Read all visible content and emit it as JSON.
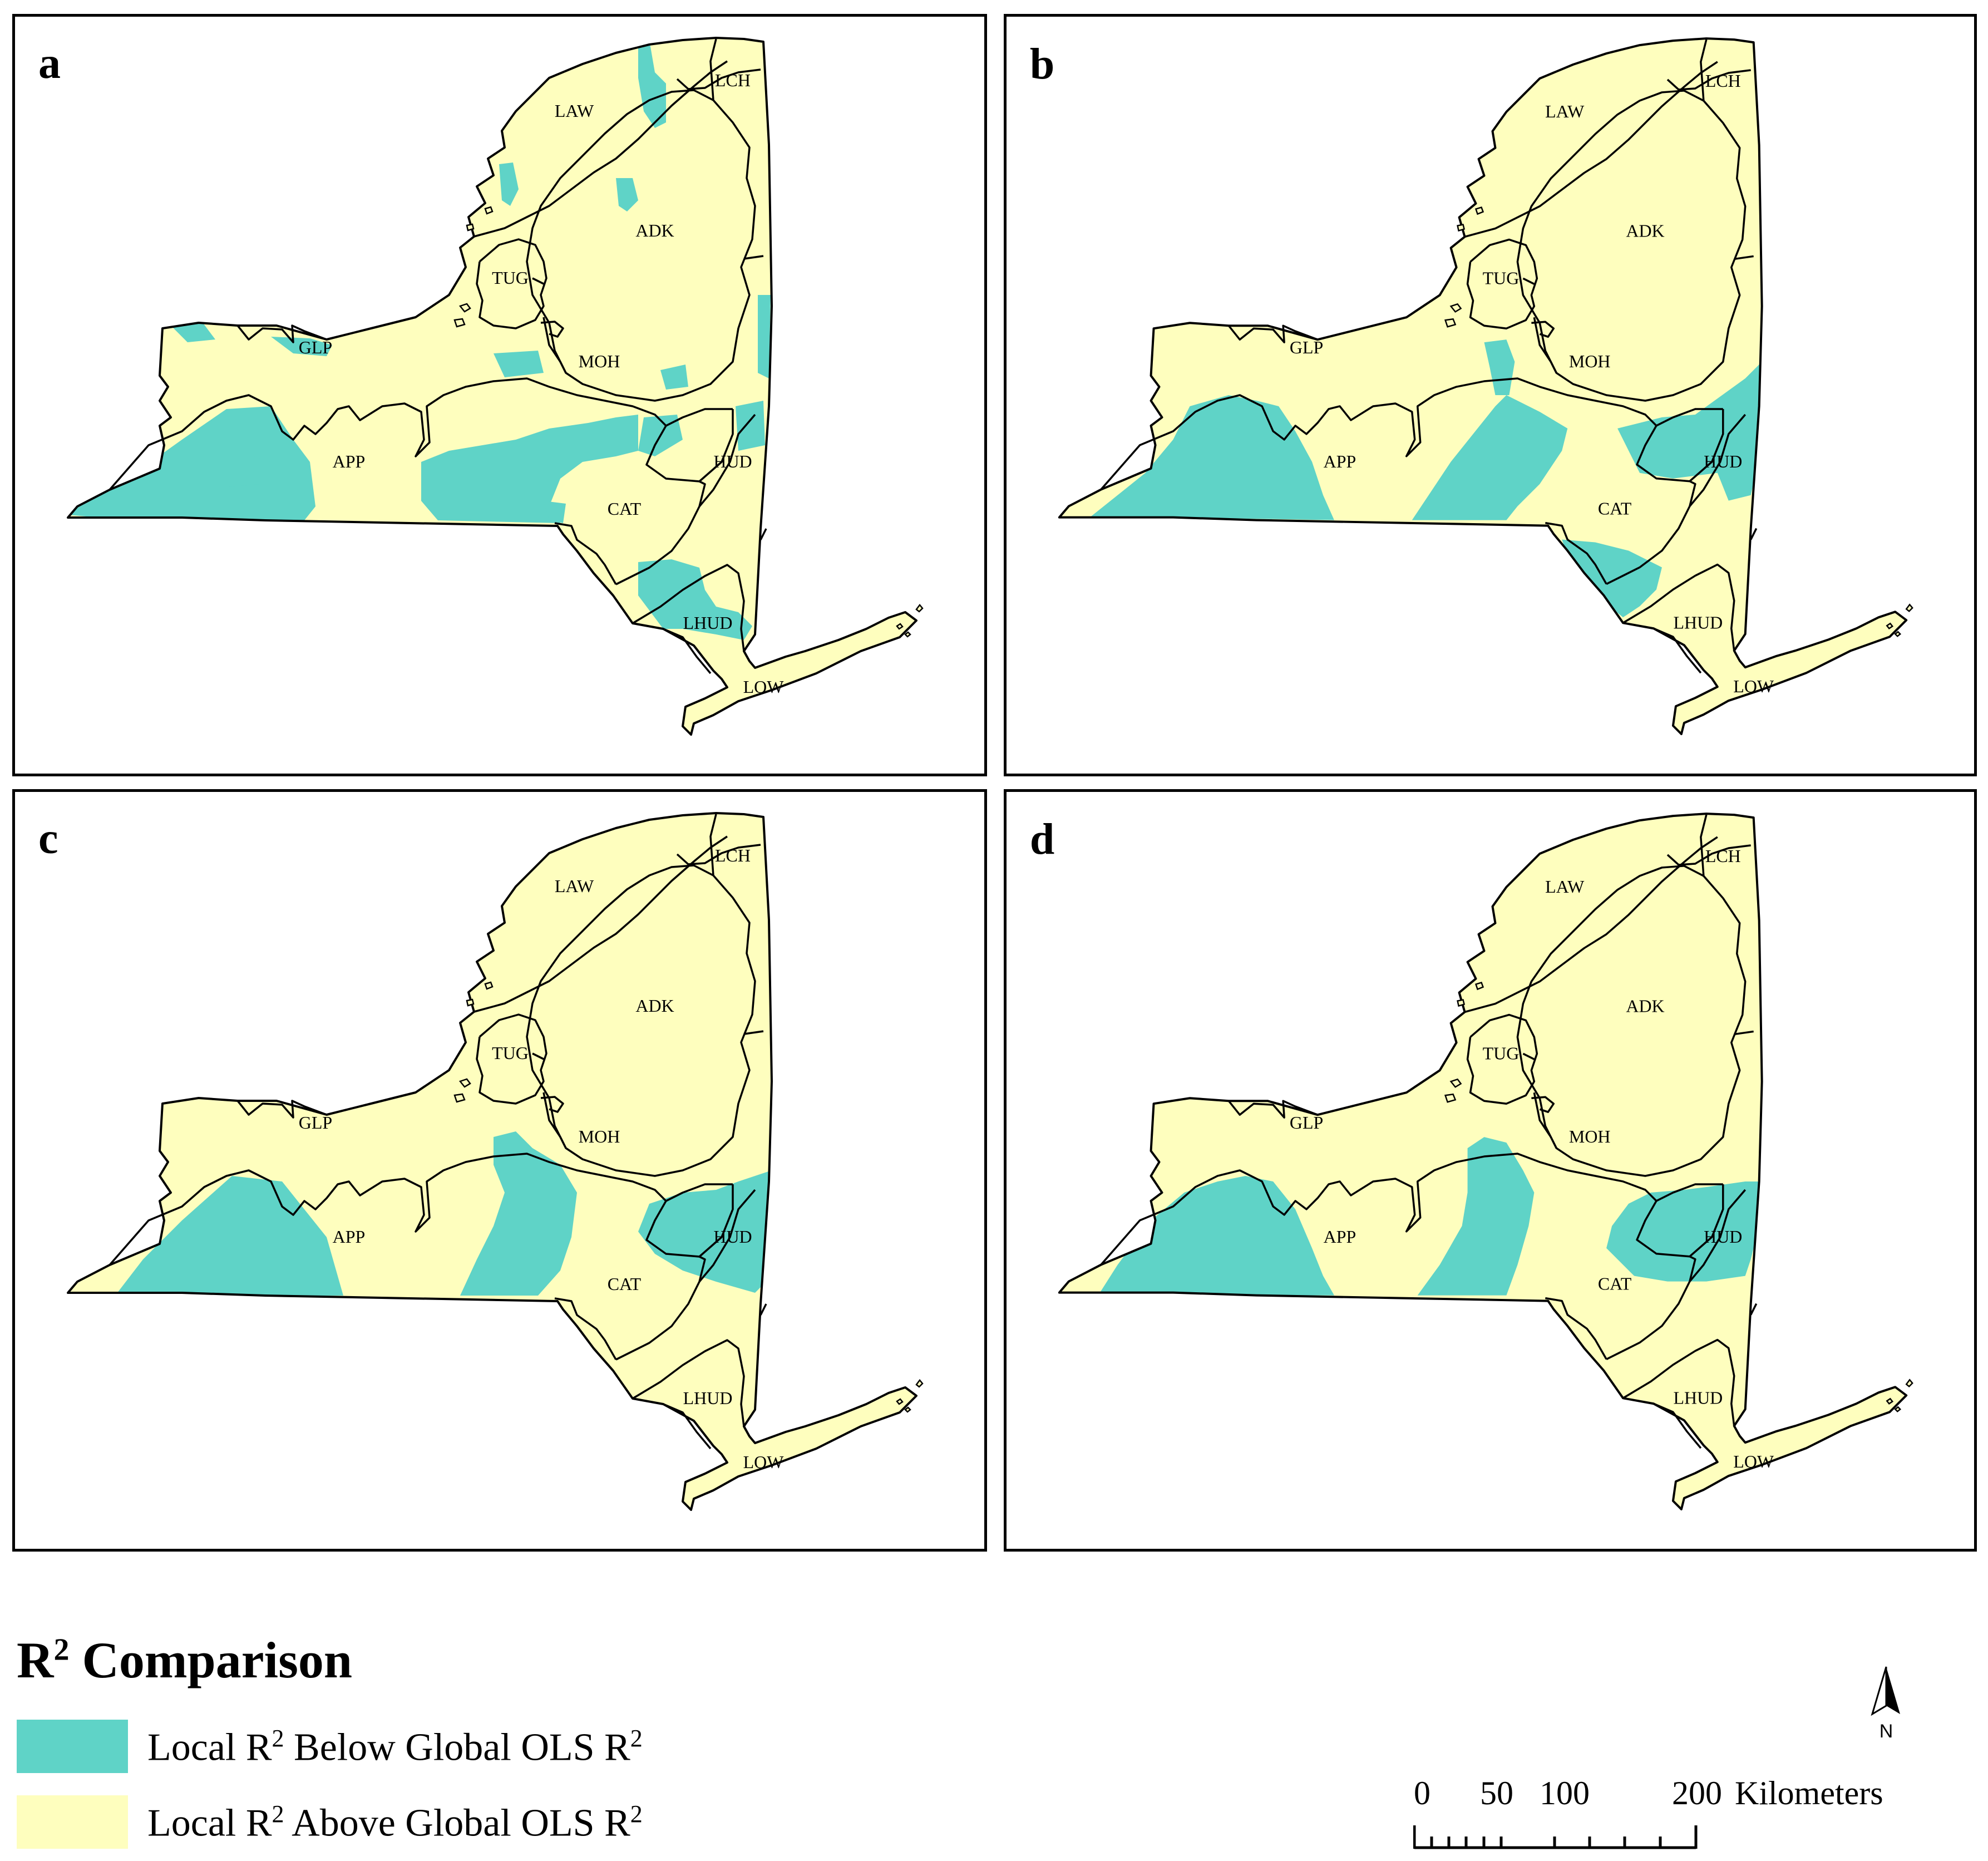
{
  "colors": {
    "below": "#5fd3c7",
    "above": "#fefebe",
    "border": "#000000"
  },
  "panels": [
    {
      "label": "a"
    },
    {
      "label": "b"
    },
    {
      "label": "c"
    },
    {
      "label": "d"
    }
  ],
  "region_labels": [
    "LCH",
    "LAW",
    "ADK",
    "TUG",
    "GLP",
    "MOH",
    "APP",
    "HUD",
    "CAT",
    "LHUD",
    "LOW"
  ],
  "legend": {
    "title_main": "R",
    "title_sup": "2",
    "title_rest": " Comparison",
    "items": [
      {
        "pre": "Local R",
        "sup1": "2",
        "mid": " Below Global OLS R",
        "sup2": "2",
        "color": "#5fd3c7"
      },
      {
        "pre": "Local R",
        "sup1": "2",
        "mid": " Above Global OLS R",
        "sup2": "2",
        "color": "#fefebe"
      }
    ]
  },
  "scale_bar": {
    "ticks": [
      "0",
      "50",
      "100",
      "200"
    ],
    "unit": "Kilometers"
  },
  "north_arrow": {
    "label": "N"
  }
}
